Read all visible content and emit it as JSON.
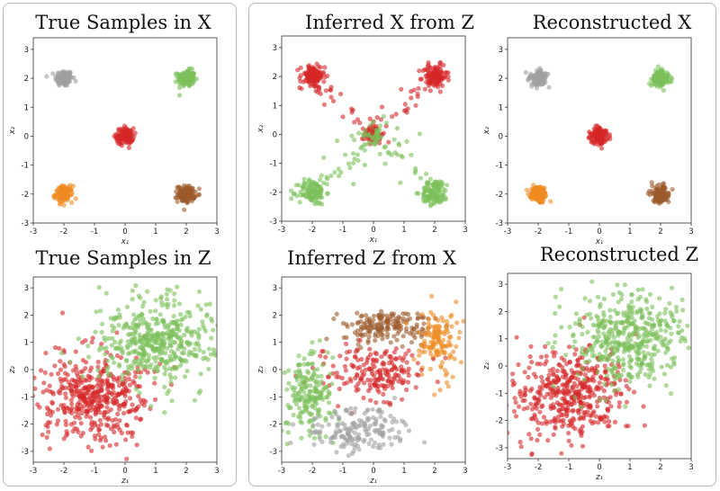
{
  "colors": {
    "red": "#d62728",
    "green": "#7cbf5a",
    "gray": "#a0a0a0",
    "orange": "#ee8a22",
    "brown": "#9c5a2b"
  },
  "chart_data": [
    {
      "id": "p1",
      "type": "scatter",
      "title": "True Samples in X",
      "xlabel": "x₁",
      "ylabel": "x₂",
      "xlim": [
        -3,
        3
      ],
      "ylim": [
        -3,
        3.4
      ],
      "xticks": [
        -3,
        -2,
        -1,
        0,
        1,
        2,
        3
      ],
      "yticks": [
        -3,
        -2,
        -1,
        0,
        1,
        2,
        3
      ],
      "clusters": [
        {
          "color": "gray",
          "center": [
            -2,
            2
          ],
          "spread": [
            0.14,
            0.14
          ],
          "n": 130
        },
        {
          "color": "green",
          "center": [
            2,
            2
          ],
          "spread": [
            0.14,
            0.14
          ],
          "n": 130
        },
        {
          "color": "red",
          "center": [
            0,
            0
          ],
          "spread": [
            0.14,
            0.14
          ],
          "n": 130
        },
        {
          "color": "orange",
          "center": [
            -2,
            -2
          ],
          "spread": [
            0.14,
            0.14
          ],
          "n": 130
        },
        {
          "color": "brown",
          "center": [
            2,
            -2
          ],
          "spread": [
            0.14,
            0.14
          ],
          "n": 130
        }
      ]
    },
    {
      "id": "p2",
      "type": "scatter",
      "title": "Inferred X from Z",
      "xlabel": "x₁",
      "ylabel": "x₂",
      "xlim": [
        -3,
        3
      ],
      "ylim": [
        -3,
        3.4
      ],
      "xticks": [
        -3,
        -2,
        -1,
        0,
        1,
        2,
        3
      ],
      "yticks": [
        -3,
        -2,
        -1,
        0,
        1,
        2,
        3
      ],
      "clusters": [
        {
          "color": "red",
          "center": [
            -2,
            2
          ],
          "spread": [
            0.2,
            0.2
          ],
          "n": 110
        },
        {
          "color": "red",
          "center": [
            2,
            2
          ],
          "spread": [
            0.2,
            0.2
          ],
          "n": 110
        },
        {
          "color": "red",
          "center": [
            0,
            0
          ],
          "spread": [
            0.15,
            0.15
          ],
          "n": 70
        },
        {
          "color": "green",
          "center": [
            -2,
            -2
          ],
          "spread": [
            0.22,
            0.22
          ],
          "n": 110
        },
        {
          "color": "green",
          "center": [
            2,
            -2
          ],
          "spread": [
            0.22,
            0.22
          ],
          "n": 110
        },
        {
          "color": "green",
          "center": [
            0,
            0
          ],
          "spread": [
            0.15,
            0.15
          ],
          "n": 40
        }
      ],
      "bridges": [
        {
          "color": "red",
          "from": [
            -2,
            2
          ],
          "to": [
            0,
            0
          ],
          "n": 30,
          "jitter": 0.2
        },
        {
          "color": "red",
          "from": [
            2,
            2
          ],
          "to": [
            0,
            0
          ],
          "n": 30,
          "jitter": 0.2
        },
        {
          "color": "green",
          "from": [
            -2,
            -2
          ],
          "to": [
            0,
            0
          ],
          "n": 35,
          "jitter": 0.3
        },
        {
          "color": "green",
          "from": [
            2,
            -2
          ],
          "to": [
            0,
            0
          ],
          "n": 35,
          "jitter": 0.3
        }
      ]
    },
    {
      "id": "p3",
      "type": "scatter",
      "title": "Reconstructed X",
      "xlabel": "x₁",
      "ylabel": "x₂",
      "xlim": [
        -3,
        3
      ],
      "ylim": [
        -3,
        3.4
      ],
      "xticks": [
        -3,
        -2,
        -1,
        0,
        1,
        2,
        3
      ],
      "yticks": [
        -3,
        -2,
        -1,
        0,
        1,
        2,
        3
      ],
      "clusters": [
        {
          "color": "gray",
          "center": [
            -2,
            2
          ],
          "spread": [
            0.14,
            0.14
          ],
          "n": 130
        },
        {
          "color": "green",
          "center": [
            2,
            2
          ],
          "spread": [
            0.14,
            0.14
          ],
          "n": 130
        },
        {
          "color": "red",
          "center": [
            0,
            0
          ],
          "spread": [
            0.14,
            0.14
          ],
          "n": 130
        },
        {
          "color": "orange",
          "center": [
            -2,
            -2
          ],
          "spread": [
            0.14,
            0.14
          ],
          "n": 130
        },
        {
          "color": "brown",
          "center": [
            2,
            -2
          ],
          "spread": [
            0.14,
            0.14
          ],
          "n": 130
        }
      ]
    },
    {
      "id": "p4",
      "type": "scatter",
      "title": "True Samples in Z",
      "xlabel": "z₁",
      "ylabel": "z₂",
      "xlim": [
        -3,
        3
      ],
      "ylim": [
        -3.4,
        3.4
      ],
      "xticks": [
        -3,
        -2,
        -1,
        0,
        1,
        2,
        3
      ],
      "yticks": [
        -3,
        -2,
        -1,
        0,
        1,
        2,
        3
      ],
      "clusters": [
        {
          "color": "red",
          "center": [
            -1,
            -1
          ],
          "spread": [
            0.9,
            0.85
          ],
          "n": 450
        },
        {
          "color": "green",
          "center": [
            1,
            1
          ],
          "spread": [
            0.9,
            0.85
          ],
          "n": 450
        }
      ]
    },
    {
      "id": "p5",
      "type": "scatter",
      "title": "Inferred Z from X",
      "xlabel": "z₁",
      "ylabel": "z₂",
      "xlim": [
        -3,
        3
      ],
      "ylim": [
        -3.4,
        3.4
      ],
      "xticks": [
        -3,
        -2,
        -1,
        0,
        1,
        2,
        3
      ],
      "yticks": [
        -3,
        -2,
        -1,
        0,
        1,
        2,
        3
      ],
      "clusters": [
        {
          "color": "brown",
          "center": [
            0.3,
            1.6
          ],
          "spread": [
            0.7,
            0.3
          ],
          "n": 170
        },
        {
          "color": "orange",
          "center": [
            2.1,
            1.0
          ],
          "spread": [
            0.3,
            0.65
          ],
          "n": 130
        },
        {
          "color": "red",
          "center": [
            0.1,
            -0.1
          ],
          "spread": [
            0.75,
            0.45
          ],
          "n": 190
        },
        {
          "color": "green",
          "center": [
            -2.1,
            -0.9
          ],
          "spread": [
            0.4,
            0.75
          ],
          "n": 190
        },
        {
          "color": "gray",
          "center": [
            -0.5,
            -2.2
          ],
          "spread": [
            0.8,
            0.38
          ],
          "n": 170
        }
      ]
    },
    {
      "id": "p6",
      "type": "scatter",
      "title": "Reconstructed Z",
      "xlabel": "z₁",
      "ylabel": "z₂",
      "xlim": [
        -3,
        3
      ],
      "ylim": [
        -3.4,
        3.4
      ],
      "xticks": [
        -3,
        -2,
        -1,
        0,
        1,
        2,
        3
      ],
      "yticks": [
        -3,
        -2,
        -1,
        0,
        1,
        2,
        3
      ],
      "clusters": [
        {
          "color": "red",
          "center": [
            -1,
            -1
          ],
          "spread": [
            0.9,
            0.85
          ],
          "n": 450
        },
        {
          "color": "green",
          "center": [
            1,
            1
          ],
          "spread": [
            0.9,
            0.85
          ],
          "n": 450
        }
      ]
    }
  ]
}
